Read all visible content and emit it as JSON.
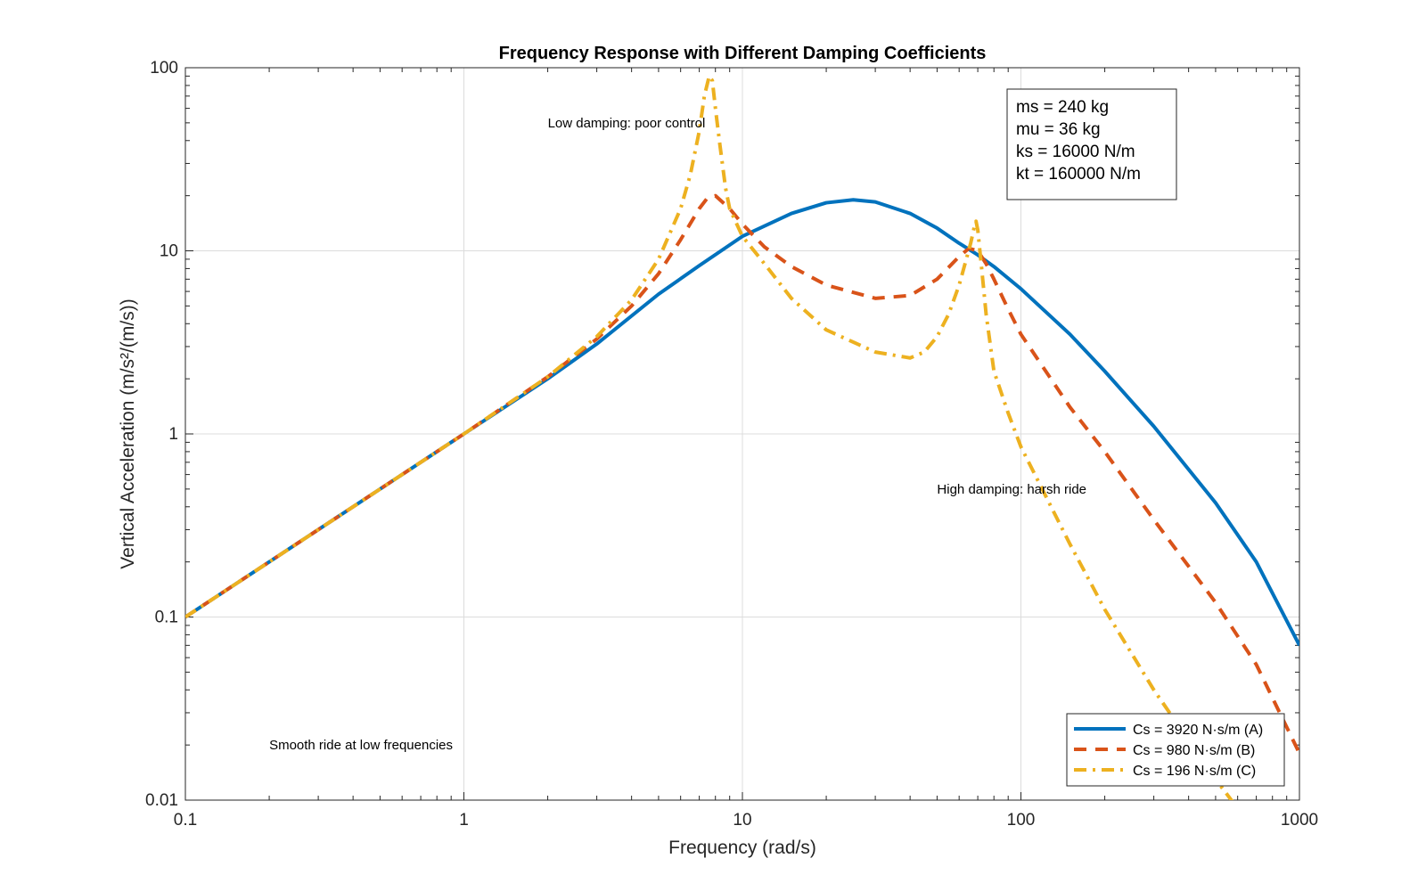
{
  "chart_data": {
    "type": "line",
    "title": "Frequency Response with Different Damping Coefficients",
    "xlabel": "Frequency (rad/s)",
    "ylabel": "Vertical Acceleration (m/s²/(m/s))",
    "xscale": "log",
    "yscale": "log",
    "xlim": [
      0.1,
      1000
    ],
    "ylim": [
      0.01,
      100
    ],
    "grid": true,
    "legend_position": "bottom-right",
    "x_ticks": [
      {
        "value": 0.1,
        "label": "0.1"
      },
      {
        "value": 1,
        "label": "1"
      },
      {
        "value": 10,
        "label": "10"
      },
      {
        "value": 100,
        "label": "100"
      },
      {
        "value": 1000,
        "label": "1000"
      }
    ],
    "y_ticks": [
      {
        "value": 0.01,
        "label": "0.01"
      },
      {
        "value": 0.1,
        "label": "0.1"
      },
      {
        "value": 1,
        "label": "1"
      },
      {
        "value": 10,
        "label": "10"
      },
      {
        "value": 100,
        "label": "100"
      }
    ],
    "parameters": [
      "ms = 240 kg",
      "mu = 36 kg",
      "ks = 16000 N/m",
      "kt = 160000 N/m"
    ],
    "annotations": [
      {
        "text": "Low damping: poor control",
        "x": 2,
        "y": 50
      },
      {
        "text": "High damping: harsh ride",
        "x": 50,
        "y": 0.5
      },
      {
        "text": "Smooth ride at low frequencies",
        "x": 0.2,
        "y": 0.02
      }
    ],
    "series": [
      {
        "name": "Cs = 3920 N·s/m (A)",
        "color": "#0072BD",
        "dash": "solid",
        "x": [
          0.1,
          0.3,
          1,
          2,
          3,
          5,
          7,
          10,
          15,
          20,
          25,
          30,
          40,
          50,
          60,
          70,
          80,
          100,
          150,
          200,
          300,
          500,
          700,
          1000
        ],
        "y": [
          0.1,
          0.3,
          1,
          2,
          3.1,
          5.8,
          8.3,
          12,
          16,
          18.3,
          19,
          18.5,
          16,
          13.3,
          11,
          9.5,
          8.2,
          6.2,
          3.5,
          2.2,
          1.1,
          0.42,
          0.2,
          0.07
        ]
      },
      {
        "name": "Cs = 980 N·s/m (B)",
        "color": "#D95319",
        "dash": "dashed",
        "x": [
          0.1,
          0.3,
          1,
          2,
          3,
          4,
          5,
          6,
          7,
          7.5,
          8,
          9,
          10,
          12,
          15,
          20,
          30,
          40,
          50,
          60,
          65,
          70,
          75,
          80,
          90,
          100,
          150,
          200,
          300,
          500,
          700,
          1000
        ],
        "y": [
          0.1,
          0.3,
          1,
          2.05,
          3.3,
          5,
          7.5,
          11.5,
          17,
          19.5,
          20,
          17,
          14,
          10.5,
          8.2,
          6.5,
          5.5,
          5.7,
          7,
          9.3,
          10.3,
          10,
          8.5,
          7,
          4.8,
          3.5,
          1.4,
          0.8,
          0.34,
          0.12,
          0.055,
          0.018
        ]
      },
      {
        "name": "Cs = 196 N·s/m (C)",
        "color": "#EDB120",
        "dash": "dashdot",
        "x": [
          0.1,
          0.3,
          1,
          2,
          3,
          4,
          5,
          6,
          6.5,
          7,
          7.3,
          7.6,
          7.8,
          8,
          8.3,
          8.7,
          9,
          10,
          12,
          15,
          20,
          30,
          40,
          45,
          50,
          55,
          60,
          63,
          66,
          68,
          69,
          70,
          72,
          75,
          80,
          90,
          100,
          150,
          200,
          300,
          500,
          600
        ],
        "y": [
          0.1,
          0.3,
          1,
          2.05,
          3.4,
          5.4,
          9,
          17,
          26,
          45,
          70,
          90,
          85,
          60,
          38,
          22,
          17,
          12,
          8.5,
          5.5,
          3.7,
          2.8,
          2.6,
          2.8,
          3.4,
          4.5,
          6.5,
          8.5,
          11,
          13.5,
          14.5,
          13,
          8.5,
          4.5,
          2.2,
          1.3,
          0.85,
          0.25,
          0.11,
          0.04,
          0.013,
          0.009
        ]
      }
    ]
  }
}
